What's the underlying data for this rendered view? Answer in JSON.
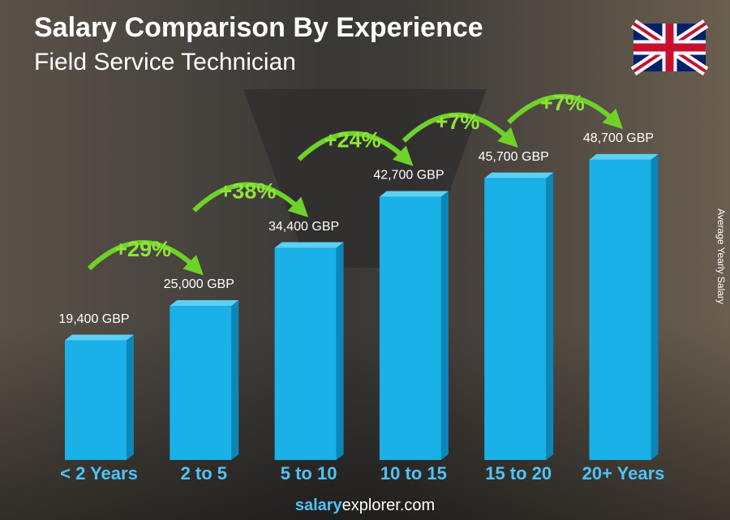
{
  "chart_data": {
    "type": "bar",
    "title": "Salary Comparison By Experience",
    "subtitle": "Field Service Technician",
    "y_label": "Average Yearly Salary",
    "categories": [
      "< 2 Years",
      "2 to 5",
      "5 to 10",
      "10 to 15",
      "15 to 20",
      "20+ Years"
    ],
    "values": [
      19400,
      25000,
      34400,
      42700,
      45700,
      48700
    ],
    "value_labels": [
      "19,400 GBP",
      "25,000 GBP",
      "34,400 GBP",
      "42,700 GBP",
      "45,700 GBP",
      "48,700 GBP"
    ],
    "increases": [
      {
        "value": 29,
        "label": "+29%"
      },
      {
        "value": 38,
        "label": "+38%"
      },
      {
        "value": 24,
        "label": "+24%"
      },
      {
        "value": 7,
        "label": "+7%"
      },
      {
        "value": 7,
        "label": "+7%"
      }
    ],
    "color": "#1ab0e8",
    "ylim": [
      0,
      55000
    ],
    "source": {
      "bold": "salary",
      "rest": "explorer.com"
    }
  }
}
